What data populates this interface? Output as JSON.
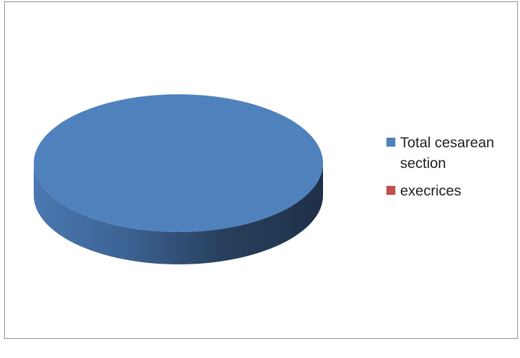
{
  "chart_data": {
    "type": "pie",
    "style": "3d",
    "title": "",
    "slices": [
      {
        "label": "Total cesarean section",
        "value": 100,
        "color": "#4f81bd"
      },
      {
        "label": "exercices",
        "value": 0,
        "color": "#c0504d"
      }
    ],
    "legend": {
      "placement": "right",
      "items": [
        {
          "label": "Total cesarean section",
          "color": "#4f81bd"
        },
        {
          "label": "execrices",
          "color": "#c0504d"
        }
      ]
    }
  }
}
